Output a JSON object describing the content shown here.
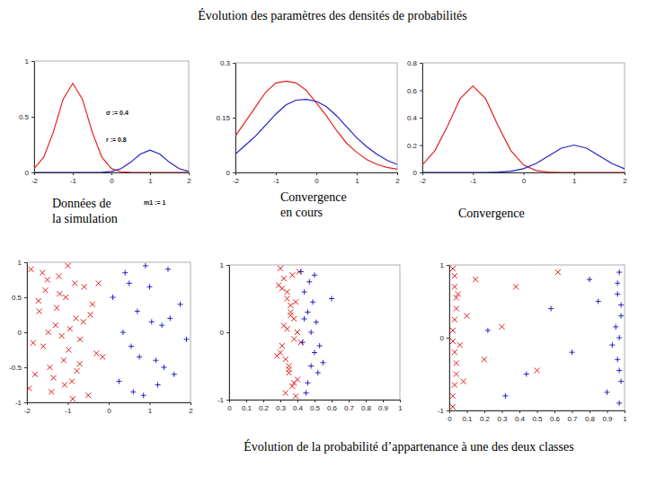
{
  "title": "Évolution des paramètres des densités de probabilités",
  "caption": "Évolution de la probabilité d’appartenance à une des deux classes",
  "chart_data": [
    {
      "type": "line",
      "title": "Données de la simulation",
      "annotations": [
        "σ := 0.4",
        "r := 0.8",
        "m1 := 1"
      ],
      "x": [
        -2,
        -1.75,
        -1.5,
        -1.25,
        -1,
        -0.75,
        -0.5,
        -0.25,
        0,
        0.25,
        0.5,
        0.75,
        1,
        1.25,
        1.5,
        1.75,
        2
      ],
      "series": [
        {
          "color": "#e8201e",
          "values": [
            0.035,
            0.138,
            0.366,
            0.658,
            0.8,
            0.658,
            0.366,
            0.138,
            0.035,
            0.006,
            0.001,
            0,
            0,
            0,
            0,
            0,
            0
          ]
        },
        {
          "color": "#1f1fc8",
          "values": [
            0,
            0,
            0,
            0,
            0,
            0,
            0,
            0.002,
            0.009,
            0.034,
            0.092,
            0.165,
            0.2,
            0.165,
            0.092,
            0.034,
            0.009
          ]
        }
      ],
      "xlim": [
        -2,
        2
      ],
      "ylim": [
        0,
        1
      ],
      "xticks": [
        -2,
        -1,
        0,
        1,
        2
      ],
      "yticks": [
        0,
        0.5,
        1
      ]
    },
    {
      "type": "line",
      "title": "Convergence en cours",
      "x": [
        -2,
        -1.75,
        -1.5,
        -1.25,
        -1,
        -0.75,
        -0.5,
        -0.25,
        0,
        0.25,
        0.5,
        0.75,
        1,
        1.25,
        1.5,
        1.75,
        2
      ],
      "series": [
        {
          "color": "#e8201e",
          "values": [
            0.1,
            0.14,
            0.18,
            0.22,
            0.245,
            0.25,
            0.245,
            0.225,
            0.19,
            0.155,
            0.115,
            0.08,
            0.055,
            0.035,
            0.022,
            0.014,
            0.009
          ]
        },
        {
          "color": "#1f1fc8",
          "values": [
            0.05,
            0.075,
            0.1,
            0.13,
            0.16,
            0.185,
            0.198,
            0.2,
            0.195,
            0.18,
            0.155,
            0.125,
            0.095,
            0.07,
            0.05,
            0.033,
            0.022
          ]
        }
      ],
      "xlim": [
        -2,
        2
      ],
      "ylim": [
        0,
        0.3
      ],
      "xticks": [
        -2,
        -1,
        0,
        1,
        2
      ],
      "yticks": [
        0,
        0.15,
        0.3
      ]
    },
    {
      "type": "line",
      "title": "Convergence",
      "x": [
        -2,
        -1.75,
        -1.5,
        -1.25,
        -1,
        -0.75,
        -0.5,
        -0.25,
        0,
        0.25,
        0.5,
        0.75,
        1,
        1.25,
        1.5,
        1.75,
        2
      ],
      "series": [
        {
          "color": "#e8201e",
          "values": [
            0.055,
            0.16,
            0.34,
            0.54,
            0.63,
            0.54,
            0.34,
            0.16,
            0.055,
            0.014,
            0.003,
            0,
            0,
            0,
            0,
            0,
            0
          ]
        },
        {
          "color": "#1f1fc8",
          "values": [
            0,
            0,
            0,
            0,
            0,
            0,
            0.002,
            0.009,
            0.027,
            0.065,
            0.121,
            0.177,
            0.2,
            0.177,
            0.121,
            0.065,
            0.027
          ]
        }
      ],
      "xlim": [
        -2,
        2
      ],
      "ylim": [
        0,
        0.8
      ],
      "xticks": [
        -2,
        -1,
        0,
        1,
        2
      ],
      "yticks": [
        0,
        0.2,
        0.4,
        0.6,
        0.8
      ]
    },
    {
      "type": "scatter",
      "series": [
        {
          "color": "#e00000",
          "marker": "x",
          "x": [
            -1.9,
            -1.8,
            -1.7,
            -1.6,
            -1.5,
            -1.4,
            -1.3,
            -1.2,
            -1.1,
            -1.0,
            -0.9,
            -0.8,
            -0.7,
            -0.6,
            -0.5,
            -0.4,
            -0.3,
            -1.85,
            -1.62,
            -1.44,
            -1.27,
            -1.08,
            -0.95,
            -0.83,
            -0.71,
            -1.55,
            -1.15,
            -0.88,
            -0.62,
            -1.35,
            -1.72,
            -0.98,
            -1.22,
            -0.45,
            -1.05,
            -0.78,
            -1.48,
            -1.95,
            -0.25,
            -0.15
          ],
          "values": [
            0.9,
            -0.6,
            0.3,
            -0.2,
            0.75,
            -0.85,
            0.1,
            0.55,
            -0.4,
            0.95,
            -0.7,
            0.2,
            -0.1,
            0.65,
            -0.9,
            0.4,
            -0.3,
            -0.15,
            0.85,
            -0.5,
            0.35,
            -0.75,
            0.05,
            0.7,
            -0.45,
            0.6,
            -0.05,
            -0.95,
            0.15,
            -0.65,
            0.45,
            -0.25,
            0.8,
            0.25,
            0.5,
            -0.55,
            0.0,
            -0.8,
            0.7,
            -0.35
          ]
        },
        {
          "color": "#1010c0",
          "marker": "plus",
          "x": [
            0.1,
            0.25,
            0.4,
            0.55,
            0.7,
            0.85,
            1.0,
            1.15,
            1.3,
            1.45,
            1.6,
            1.75,
            1.9,
            0.35,
            0.6,
            0.9,
            1.2,
            1.5,
            0.75,
            1.05,
            1.35,
            0.5
          ],
          "values": [
            0.5,
            -0.7,
            0.85,
            -0.2,
            0.3,
            -0.9,
            0.65,
            -0.4,
            0.1,
            0.9,
            -0.6,
            0.4,
            -0.1,
            0.0,
            -0.85,
            0.95,
            -0.75,
            0.2,
            -0.35,
            0.15,
            -0.5,
            0.7
          ]
        }
      ],
      "xlim": [
        -2,
        2
      ],
      "ylim": [
        -1,
        1
      ],
      "xticks": [
        -2,
        -1,
        0,
        1,
        2
      ],
      "yticks": [
        -1,
        -0.5,
        0,
        0.5,
        1
      ]
    },
    {
      "type": "scatter",
      "series": [
        {
          "color": "#e00000",
          "marker": "x",
          "x": [
            0.3,
            0.32,
            0.34,
            0.36,
            0.38,
            0.4,
            0.31,
            0.33,
            0.35,
            0.37,
            0.39,
            0.41,
            0.29,
            0.34,
            0.36,
            0.32,
            0.38,
            0.3,
            0.35,
            0.4,
            0.33,
            0.37,
            0.31,
            0.39,
            0.36,
            0.34,
            0.42,
            0.28,
            0.35,
            0.38
          ],
          "values": [
            0.95,
            0.8,
            0.6,
            0.4,
            0.2,
            0.0,
            -0.2,
            -0.4,
            -0.6,
            -0.8,
            -0.95,
            0.9,
            0.7,
            0.5,
            0.3,
            0.1,
            -0.1,
            -0.3,
            -0.5,
            -0.7,
            -0.9,
            0.85,
            0.65,
            0.45,
            0.25,
            0.05,
            -0.15,
            -0.35,
            -0.55,
            -0.75
          ]
        },
        {
          "color": "#1010c0",
          "marker": "plus",
          "x": [
            0.42,
            0.44,
            0.46,
            0.48,
            0.5,
            0.52,
            0.45,
            0.47,
            0.49,
            0.51,
            0.43,
            0.55,
            0.6,
            0.46,
            0.5,
            0.44,
            0.48,
            0.53
          ],
          "values": [
            0.9,
            0.6,
            0.3,
            0.0,
            -0.3,
            -0.6,
            -0.9,
            0.75,
            0.45,
            0.15,
            -0.15,
            -0.45,
            0.5,
            -0.75,
            0.85,
            0.2,
            -0.5,
            -0.2
          ]
        }
      ],
      "xlim": [
        0,
        1
      ],
      "ylim": [
        -1,
        1
      ],
      "xticks": [
        0,
        0.1,
        0.2,
        0.3,
        0.4,
        0.5,
        0.6,
        0.7,
        0.8,
        0.9,
        1
      ],
      "yticks": [
        -1,
        0,
        1
      ]
    },
    {
      "type": "scatter",
      "series": [
        {
          "color": "#e00000",
          "marker": "x",
          "x": [
            0.02,
            0.03,
            0.04,
            0.02,
            0.03,
            0.04,
            0.02,
            0.03,
            0.04,
            0.03,
            0.02,
            0.04,
            0.03,
            0.02,
            0.05,
            0.06,
            0.1,
            0.08,
            0.15,
            0.2,
            0.3,
            0.38,
            0.5,
            0.62
          ],
          "values": [
            0.95,
            0.7,
            0.4,
            0.1,
            -0.2,
            -0.5,
            -0.8,
            0.85,
            0.55,
            0.25,
            -0.05,
            -0.35,
            -0.65,
            -0.95,
            0.6,
            -0.1,
            0.3,
            -0.6,
            0.8,
            -0.3,
            0.15,
            0.7,
            -0.45,
            0.9
          ]
        },
        {
          "color": "#1010c0",
          "marker": "plus",
          "x": [
            0.97,
            0.96,
            0.98,
            0.97,
            0.96,
            0.98,
            0.97,
            0.96,
            0.98,
            0.97,
            0.95,
            0.9,
            0.85,
            0.7,
            0.58,
            0.44,
            0.32,
            0.22,
            0.8,
            0.93
          ],
          "values": [
            0.9,
            0.6,
            0.3,
            0.0,
            -0.3,
            -0.6,
            -0.9,
            0.75,
            0.45,
            -0.45,
            0.15,
            -0.75,
            0.5,
            -0.2,
            0.4,
            -0.5,
            -0.8,
            0.1,
            0.8,
            -0.1
          ]
        }
      ],
      "xlim": [
        0,
        1
      ],
      "ylim": [
        -1,
        1
      ],
      "xticks": [
        0,
        0.1,
        0.2,
        0.3,
        0.4,
        0.5,
        0.6,
        0.7,
        0.8,
        0.9,
        1
      ],
      "yticks": [
        -1,
        0,
        1
      ]
    }
  ]
}
